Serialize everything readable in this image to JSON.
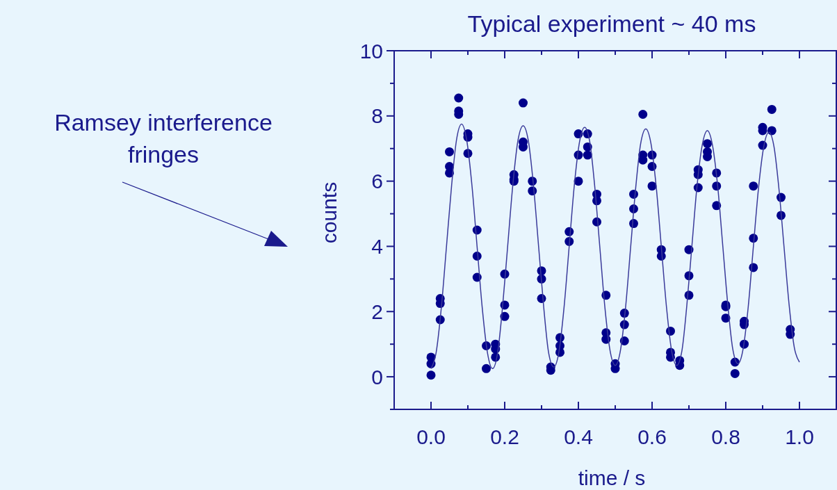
{
  "chart_data": {
    "type": "scatter",
    "title": "Typical experiment ~ 40 ms",
    "xlabel": "time / s",
    "ylabel": "counts",
    "annotations": [
      "Ramsey interference fringes"
    ],
    "xlim": [
      -0.1,
      1.1
    ],
    "ylim": [
      -1,
      10
    ],
    "xticks": [
      {
        "value": 0,
        "label": "0.0"
      },
      {
        "value": 0.1,
        "label": null
      },
      {
        "value": 0.2,
        "label": "0.2"
      },
      {
        "value": 0.3,
        "label": null
      },
      {
        "value": 0.4,
        "label": "0.4"
      },
      {
        "value": 0.5,
        "label": null
      },
      {
        "value": 0.6,
        "label": "0.6"
      },
      {
        "value": 0.7,
        "label": null
      },
      {
        "value": 0.8,
        "label": "0.8"
      },
      {
        "value": 0.9,
        "label": null
      },
      {
        "value": 1,
        "label": "1.0"
      }
    ],
    "yticks": [
      {
        "value": -1,
        "label": null
      },
      0,
      {
        "value": 1,
        "label": null
      },
      2,
      {
        "value": 3,
        "label": null
      },
      4,
      {
        "value": 5,
        "label": null
      },
      6,
      {
        "value": 7,
        "label": null
      },
      8,
      {
        "value": 9,
        "label": null
      },
      10
    ],
    "grid": false,
    "series": [
      {
        "marker": "circle",
        "color": "#00008b",
        "x": [
          0,
          0,
          0,
          0.025,
          0.025,
          0.025,
          0.05,
          0.05,
          0.05,
          0.075,
          0.075,
          0.075,
          0.1,
          0.1,
          0.1,
          0.125,
          0.125,
          0.125,
          0.15,
          0.15,
          0.175,
          0.175,
          0.175,
          0.2,
          0.2,
          0.2,
          0.225,
          0.225,
          0.225,
          0.25,
          0.25,
          0.25,
          0.275,
          0.275,
          0.3,
          0.3,
          0.3,
          0.325,
          0.325,
          0.35,
          0.35,
          0.35,
          0.375,
          0.375,
          0.4,
          0.4,
          0.4,
          0.425,
          0.425,
          0.425,
          0.45,
          0.45,
          0.45,
          0.475,
          0.475,
          0.475,
          0.5,
          0.5,
          0.525,
          0.525,
          0.525,
          0.55,
          0.55,
          0.55,
          0.575,
          0.575,
          0.575,
          0.6,
          0.6,
          0.6,
          0.625,
          0.625,
          0.65,
          0.65,
          0.65,
          0.675,
          0.675,
          0.7,
          0.7,
          0.7,
          0.725,
          0.725,
          0.725,
          0.75,
          0.75,
          0.75,
          0.775,
          0.775,
          0.775,
          0.8,
          0.8,
          0.8,
          0.825,
          0.825,
          0.85,
          0.85,
          0.85,
          0.875,
          0.875,
          0.875,
          0.9,
          0.9,
          0.9,
          0.925,
          0.925,
          0.95,
          0.95,
          0.975,
          0.975
        ],
        "values": [
          0.6,
          0.4,
          0.05,
          2.4,
          2.25,
          1.75,
          6.9,
          6.45,
          6.25,
          8.55,
          8.15,
          8.05,
          7.45,
          7.35,
          6.85,
          4.5,
          3.7,
          3.05,
          0.95,
          0.25,
          1.0,
          0.85,
          0.6,
          3.15,
          2.2,
          1.85,
          6.2,
          6.05,
          6.0,
          8.4,
          7.2,
          7.05,
          6.0,
          5.7,
          3.25,
          3.0,
          2.4,
          0.3,
          0.2,
          1.2,
          0.95,
          0.75,
          4.45,
          4.15,
          7.45,
          6.8,
          6.0,
          7.45,
          7.05,
          6.8,
          5.6,
          5.4,
          4.75,
          2.5,
          1.35,
          1.15,
          0.4,
          0.25,
          1.95,
          1.6,
          1.1,
          5.6,
          5.15,
          4.7,
          8.05,
          6.8,
          6.65,
          6.8,
          6.45,
          5.85,
          3.9,
          3.7,
          1.4,
          0.75,
          0.6,
          0.5,
          0.35,
          3.9,
          3.1,
          2.5,
          6.35,
          6.2,
          5.8,
          7.15,
          6.9,
          6.75,
          6.25,
          5.85,
          5.25,
          2.2,
          2.15,
          1.8,
          0.45,
          0.1,
          1.7,
          1.6,
          1.0,
          5.85,
          4.25,
          3.35,
          7.65,
          7.55,
          7.1,
          8.2,
          7.55,
          5.5,
          4.95,
          1.45,
          1.3
        ]
      },
      {
        "type": "line",
        "color": "#3a3a9a",
        "x": [
          0,
          0.014,
          0.028,
          0.042,
          0.056,
          0.069,
          0.083,
          0.097,
          0.111,
          0.125,
          0.139,
          0.153,
          0.167,
          0.181,
          0.194,
          0.208,
          0.222,
          0.236,
          0.25,
          0.264,
          0.278,
          0.292,
          0.306,
          0.319,
          0.333,
          0.347,
          0.361,
          0.375,
          0.389,
          0.403,
          0.417,
          0.431,
          0.444,
          0.458,
          0.472,
          0.486,
          0.5,
          0.514,
          0.528,
          0.542,
          0.556,
          0.569,
          0.583,
          0.597,
          0.611,
          0.625,
          0.639,
          0.653,
          0.667,
          0.681,
          0.694,
          0.708,
          0.722,
          0.736,
          0.75,
          0.764,
          0.778,
          0.792,
          0.806,
          0.819,
          0.833,
          0.847,
          0.861,
          0.875,
          0.889,
          0.903,
          0.917,
          0.931,
          0.944,
          0.958,
          0.972,
          0.986,
          1.0
        ],
        "values": [
          0.25,
          0.75,
          2.12,
          4.0,
          5.88,
          7.25,
          7.75,
          7.25,
          5.88,
          4.0,
          2.12,
          0.75,
          0.25,
          0.75,
          2.12,
          4.0,
          5.88,
          7.25,
          7.7,
          7.25,
          5.88,
          4.0,
          2.12,
          0.75,
          0.3,
          0.75,
          2.12,
          4.0,
          5.88,
          7.2,
          7.65,
          7.2,
          5.88,
          4.0,
          2.12,
          0.8,
          0.35,
          0.8,
          2.12,
          4.0,
          5.85,
          7.15,
          7.6,
          7.15,
          5.85,
          4.0,
          2.15,
          0.8,
          0.35,
          0.8,
          2.15,
          4.0,
          5.85,
          7.1,
          7.55,
          7.1,
          5.85,
          4.0,
          2.15,
          0.85,
          0.4,
          0.85,
          2.15,
          4.0,
          5.8,
          7.05,
          7.5,
          7.05,
          5.8,
          4.0,
          2.2,
          0.9,
          0.45
        ]
      }
    ]
  }
}
